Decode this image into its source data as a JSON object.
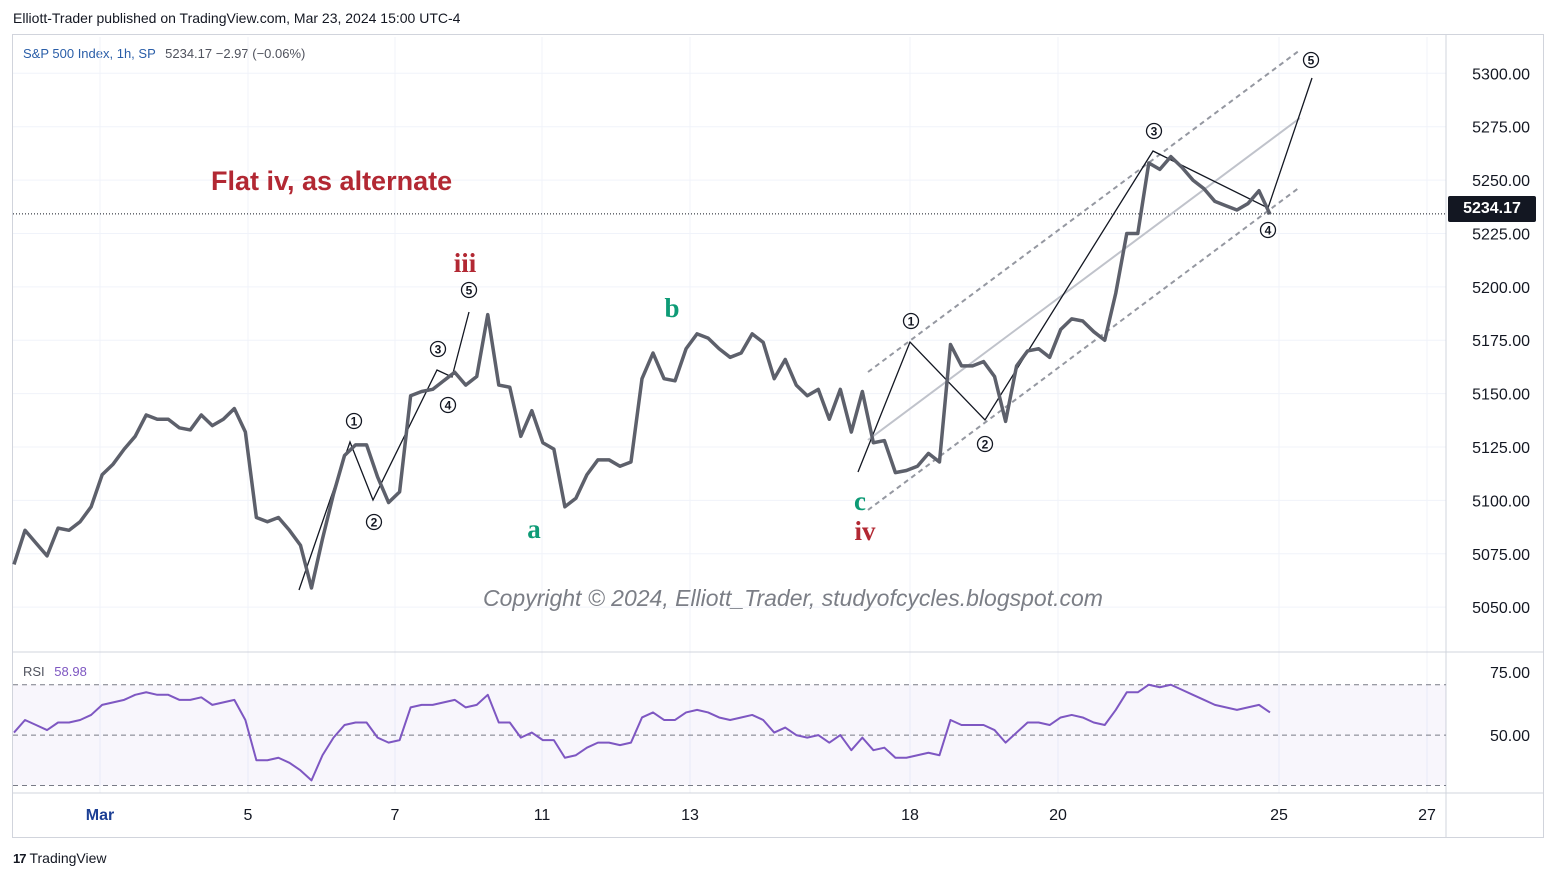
{
  "header": {
    "publisher_line": "Elliott-Trader published on TradingView.com, Mar 23, 2024 15:00 UTC-4"
  },
  "symbol": {
    "name": "S&P 500 Index, 1h, SP",
    "values": "5234.17  −2.97 (−0.06%)"
  },
  "price_tag": "5234.17",
  "footer": {
    "logo_text": "TradingView",
    "logo_mark": "17"
  },
  "annotations": {
    "title": "Flat iv, as alternate",
    "copyright": "Copyright © 2024, Elliott_Trader, studyofcycles.blogspot.com"
  },
  "rsi": {
    "label": "RSI",
    "value": "58.98"
  },
  "colors": {
    "price_line": "#5d606b",
    "rsi_line": "#7e57c2",
    "wave_red": "#b22833",
    "wave_teal": "#0e9b76",
    "channel": "#9598a1",
    "axis_text": "#131722",
    "date_text": "#1c3f95"
  },
  "chart_data": [
    {
      "type": "line",
      "title": "",
      "series": [
        {
          "values": [
            5070,
            5086,
            5080,
            5074,
            5087,
            5086,
            5090,
            5097,
            5112,
            5117,
            5124,
            5130,
            5140,
            5138,
            5138,
            5134,
            5133,
            5140,
            5135,
            5138,
            5143,
            5132,
            5092,
            5090,
            5092,
            5086,
            5079,
            5059,
            5082,
            5103,
            5121,
            5126,
            5126,
            5111,
            5099,
            5104,
            5149,
            5151,
            5152,
            5156,
            5160,
            5154,
            5158,
            5187,
            5154,
            5153,
            5130,
            5142,
            5127,
            5124,
            5097,
            5101,
            5112,
            5119,
            5119,
            5116,
            5118,
            5157,
            5169,
            5157,
            5156,
            5171,
            5178,
            5176,
            5171,
            5167,
            5169,
            5178,
            5174,
            5157,
            5166,
            5154,
            5149,
            5152,
            5138,
            5152,
            5132,
            5151,
            5127,
            5128,
            5113,
            5114,
            5116,
            5122,
            5118,
            5173,
            5163,
            5163,
            5165,
            5158,
            5137,
            5163,
            5170,
            5171,
            5167,
            5180,
            5185,
            5184,
            5179,
            5175,
            5197,
            5225,
            5225,
            5258,
            5255,
            5261,
            5256,
            5250,
            5246,
            5240,
            5238,
            5236,
            5239,
            5245,
            5234
          ]
        }
      ],
      "x_ticks": [
        "Mar",
        "5",
        "7",
        "11",
        "13",
        "18",
        "20",
        "25",
        "27"
      ],
      "y_ticks": [
        "5300.00",
        "5275.00",
        "5250.00",
        "5225.00",
        "5200.00",
        "5175.00",
        "5150.00",
        "5125.00",
        "5100.00",
        "5075.00",
        "5050.00"
      ],
      "ylim": [
        5029,
        5317
      ],
      "grid": true,
      "wave_labels": [
        {
          "text": "iii",
          "color": "red"
        },
        {
          "text": "iv",
          "color": "red"
        },
        {
          "text": "a",
          "color": "teal"
        },
        {
          "text": "b",
          "color": "teal"
        },
        {
          "text": "c",
          "color": "teal"
        }
      ],
      "circled_labels": [
        "1",
        "2",
        "3",
        "4",
        "5",
        "1",
        "2",
        "3",
        "4",
        "5"
      ]
    },
    {
      "type": "line",
      "title": "",
      "series": [
        {
          "name": "RSI",
          "values": [
            51,
            56,
            54,
            52,
            55,
            55,
            56,
            58,
            62,
            63,
            64,
            66,
            67,
            66,
            66,
            64,
            64,
            65,
            62,
            63,
            64,
            56,
            40,
            40,
            41,
            39,
            36,
            32,
            42,
            49,
            54,
            55,
            55,
            49,
            47,
            48,
            61,
            62,
            62,
            63,
            64,
            61,
            62,
            66,
            55,
            55,
            49,
            51,
            48,
            48,
            41,
            42,
            45,
            47,
            47,
            46,
            47,
            57,
            59,
            56,
            56,
            59,
            60,
            59,
            57,
            56,
            57,
            58,
            56,
            51,
            53,
            50,
            49,
            50,
            47,
            50,
            44,
            49,
            44,
            45,
            41,
            41,
            42,
            43,
            42,
            56,
            54,
            54,
            54,
            52,
            47,
            51,
            55,
            55,
            54,
            57,
            58,
            57,
            55,
            54,
            60,
            67,
            67,
            70,
            69,
            70,
            68,
            66,
            64,
            62,
            61,
            60,
            61,
            62,
            59
          ]
        }
      ],
      "y_ticks": [
        "75.00",
        "50.00"
      ],
      "levels": [
        70,
        50,
        30
      ],
      "ylim": [
        27,
        83
      ]
    }
  ]
}
